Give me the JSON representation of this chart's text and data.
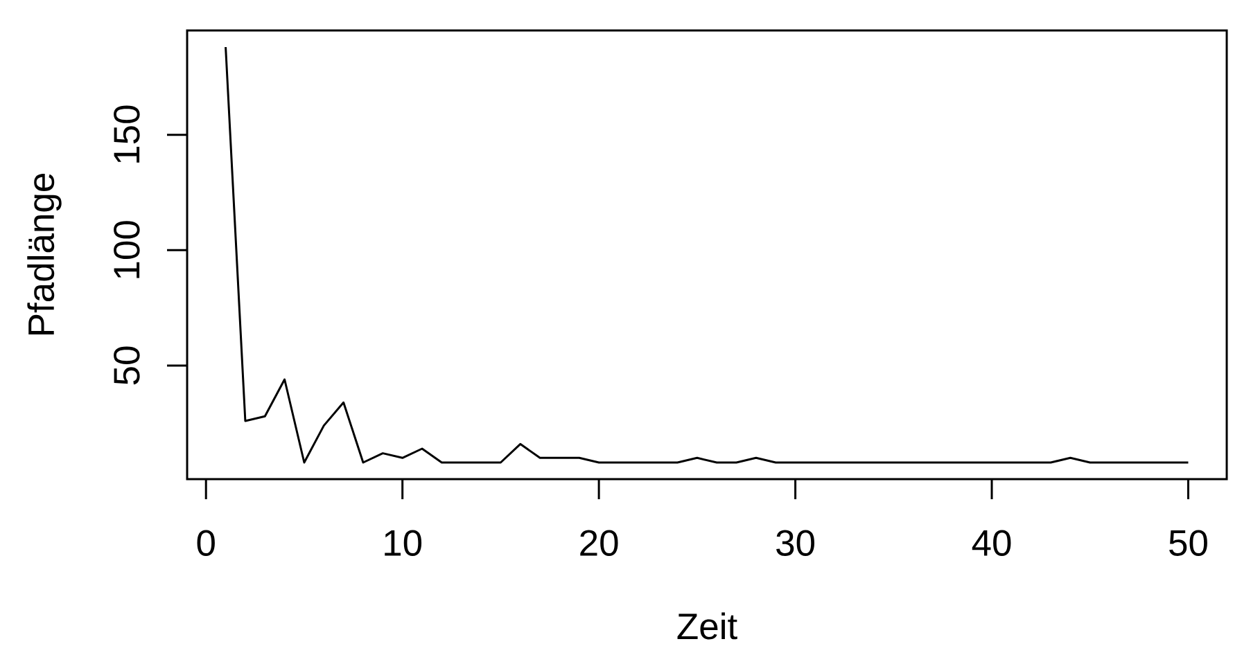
{
  "chart_data": {
    "type": "line",
    "xlabel": "Zeit",
    "ylabel": "Pfadlänge",
    "x": [
      1,
      2,
      3,
      4,
      5,
      6,
      7,
      8,
      9,
      10,
      11,
      12,
      13,
      14,
      15,
      16,
      17,
      18,
      19,
      20,
      21,
      22,
      23,
      24,
      25,
      26,
      27,
      28,
      29,
      30,
      31,
      32,
      33,
      34,
      35,
      36,
      37,
      38,
      39,
      40,
      41,
      42,
      43,
      44,
      45,
      46,
      47,
      48,
      49,
      50
    ],
    "series": [
      {
        "color": "#000000",
        "values": [
          188,
          26,
          28,
          44,
          8,
          24,
          34,
          8,
          12,
          10,
          14,
          8,
          8,
          8,
          8,
          16,
          10,
          10,
          10,
          8,
          8,
          8,
          8,
          8,
          10,
          8,
          8,
          10,
          8,
          8,
          8,
          8,
          8,
          8,
          8,
          8,
          8,
          8,
          8,
          8,
          8,
          8,
          8,
          10,
          8,
          8,
          8,
          8,
          8,
          8
        ]
      }
    ],
    "xlim": [
      -0.96,
      51.96
    ],
    "ylim": [
      0.8,
      195.2
    ],
    "xticks": [
      0,
      10,
      20,
      30,
      40,
      50
    ],
    "yticks": [
      50,
      100,
      150
    ],
    "marker": "none",
    "line_style": "solid"
  }
}
